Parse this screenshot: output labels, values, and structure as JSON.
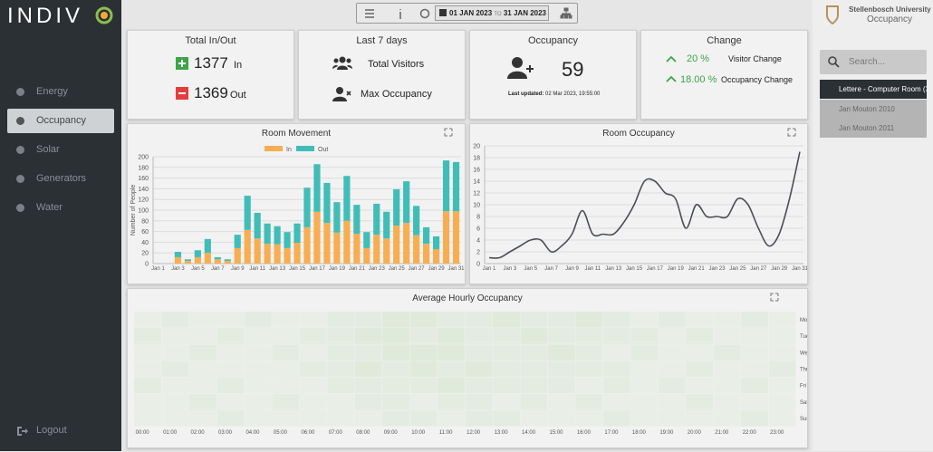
{
  "sidebar": {
    "logo": "INDIV",
    "nav": [
      "Energy",
      "Occupancy",
      "Solar",
      "Generators",
      "Water"
    ],
    "active": 1,
    "logout": "Logout"
  },
  "toolbar": {
    "date_from": "01 JAN 2023",
    "date_sep": "TO",
    "date_to": "31 JAN 2023"
  },
  "header": {
    "org": "Stellenbosch University",
    "section": "Occupancy"
  },
  "rooms": {
    "search_placeholder": "Search...",
    "items": [
      "Lettere - Computer Room (3rd",
      "Jan Mouton 2010",
      "Jan Mouton 2011"
    ],
    "selected": 0
  },
  "cards": {
    "total": {
      "title": "Total In/Out",
      "in_value": "1377",
      "in_label": "In",
      "out_value": "1369",
      "out_label": "Out"
    },
    "week": {
      "title": "Last 7 days",
      "visitors": "Total Visitors",
      "max": "Max Occupancy"
    },
    "occupancy": {
      "title": "Occupancy",
      "value": "59",
      "updated_label": "Last updated:",
      "updated": "02 Mar 2023, 19:55:00"
    },
    "change": {
      "title": "Change",
      "visitor_value": "20 %",
      "visitor_label": "Visitor Change",
      "occ_value": "18.00 %",
      "occ_label": "Occupancy Change"
    }
  },
  "chart_data": [
    {
      "type": "bar",
      "stacked": true,
      "title": "Room Movement",
      "ylabel": "Number of People",
      "categories": [
        "Jan 1",
        null,
        "Jan 3",
        null,
        "Jan 5",
        null,
        "Jan 7",
        null,
        "Jan 9",
        null,
        "Jan 11",
        null,
        "Jan 13",
        null,
        "Jan 15",
        null,
        "Jan 17",
        null,
        "Jan 19",
        null,
        "Jan 21",
        null,
        "Jan 23",
        null,
        "Jan 25",
        null,
        "Jan 27",
        null,
        "Jan 29",
        null,
        "Jan 31"
      ],
      "series": [
        {
          "name": "In",
          "color": "#f7ae52",
          "values": [
            0,
            0,
            12,
            5,
            12,
            20,
            8,
            5,
            29,
            63,
            47,
            37,
            36,
            29,
            39,
            68,
            97,
            76,
            58,
            80,
            56,
            29,
            54,
            47,
            71,
            76,
            53,
            37,
            27,
            98,
            98
          ]
        },
        {
          "name": "Out",
          "color": "#41bdb8",
          "values": [
            0,
            0,
            10,
            3,
            13,
            26,
            4,
            3,
            25,
            64,
            48,
            38,
            34,
            30,
            36,
            74,
            89,
            75,
            57,
            84,
            54,
            30,
            58,
            50,
            68,
            78,
            55,
            31,
            24,
            95,
            92
          ]
        }
      ],
      "ylim": [
        0,
        200
      ],
      "yticks": [
        0,
        20,
        40,
        60,
        80,
        100,
        120,
        140,
        160,
        180,
        200
      ],
      "grid": true,
      "legend": "top"
    },
    {
      "type": "line",
      "title": "Room Occupancy",
      "color": "#4a4f57",
      "categories": [
        "Jan 1",
        null,
        "Jan 3",
        null,
        "Jan 5",
        null,
        "Jan 7",
        null,
        "Jan 9",
        null,
        "Jan 11",
        null,
        "Jan 13",
        null,
        "Jan 15",
        null,
        "Jan 17",
        null,
        "Jan 19",
        null,
        "Jan 21",
        null,
        "Jan 23",
        null,
        "Jan 25",
        null,
        "Jan 27",
        null,
        "Jan 29",
        null,
        "Jan 31"
      ],
      "values": [
        1,
        1,
        2,
        3,
        4,
        4,
        2,
        3,
        5,
        9,
        5,
        5,
        5,
        7,
        10,
        14,
        14,
        12,
        11,
        6,
        10,
        8,
        8,
        8,
        11,
        10,
        6,
        3,
        5,
        11,
        19
      ],
      "ylim": [
        0,
        20
      ],
      "yticks": [
        0,
        2,
        4,
        6,
        8,
        10,
        12,
        14,
        16,
        18,
        20
      ],
      "grid": true
    },
    {
      "type": "heatmap",
      "title": "Average Hourly Occupancy",
      "color": "#cfe3c8",
      "x": [
        "00:00",
        "01:00",
        "02:00",
        "03:00",
        "04:00",
        "05:00",
        "06:00",
        "07:00",
        "08:00",
        "09:00",
        "10:00",
        "11:00",
        "12:00",
        "13:00",
        "14:00",
        "15:00",
        "16:00",
        "17:00",
        "18:00",
        "19:00",
        "20:00",
        "21:00",
        "22:00",
        "23:00"
      ],
      "y": [
        "Mon",
        "Tue",
        "Wed",
        "Thu",
        "Fri",
        "Sat",
        "Sun"
      ],
      "values": [
        [
          0,
          1,
          0,
          0,
          1,
          0,
          0,
          1,
          1,
          2,
          2,
          1,
          1,
          2,
          1,
          1,
          2,
          1,
          0,
          1,
          0,
          0,
          1,
          0
        ],
        [
          1,
          0,
          0,
          1,
          0,
          0,
          1,
          1,
          2,
          2,
          1,
          2,
          1,
          1,
          2,
          1,
          1,
          1,
          1,
          0,
          1,
          0,
          0,
          0
        ],
        [
          0,
          0,
          1,
          0,
          0,
          1,
          0,
          1,
          1,
          2,
          2,
          2,
          1,
          1,
          1,
          2,
          1,
          0,
          1,
          0,
          0,
          1,
          0,
          0
        ],
        [
          0,
          1,
          0,
          0,
          0,
          0,
          1,
          1,
          2,
          1,
          2,
          1,
          2,
          1,
          1,
          1,
          1,
          1,
          0,
          0,
          1,
          0,
          0,
          1
        ],
        [
          1,
          0,
          0,
          1,
          0,
          0,
          0,
          1,
          1,
          1,
          1,
          2,
          1,
          1,
          1,
          1,
          0,
          1,
          0,
          1,
          0,
          0,
          1,
          0
        ],
        [
          0,
          0,
          1,
          0,
          0,
          1,
          0,
          0,
          1,
          1,
          0,
          1,
          1,
          0,
          1,
          0,
          1,
          0,
          0,
          0,
          1,
          0,
          0,
          0
        ],
        [
          0,
          0,
          0,
          1,
          0,
          0,
          0,
          0,
          0,
          1,
          1,
          0,
          1,
          1,
          0,
          0,
          0,
          1,
          0,
          0,
          0,
          0,
          1,
          0
        ]
      ],
      "vlim": [
        0,
        2
      ]
    }
  ]
}
